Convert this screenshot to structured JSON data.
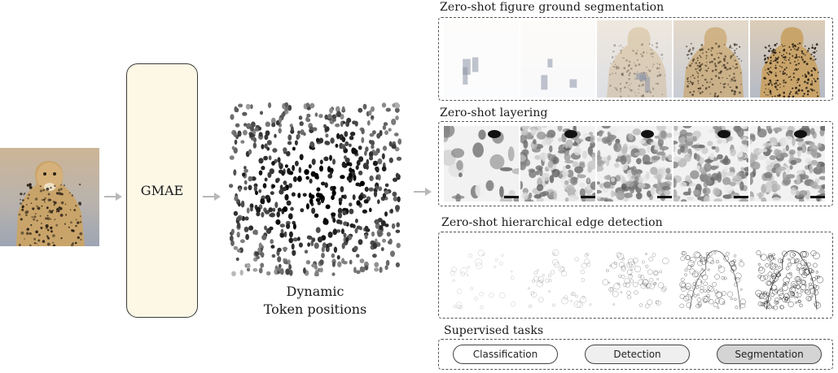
{
  "input": {
    "image_icon": "cheetah-photo"
  },
  "encoder": {
    "label": "GMAE"
  },
  "tokens": {
    "caption_line1": "Dynamic",
    "caption_line2": "Token positions"
  },
  "sections": {
    "segmentation": {
      "title": "Zero-shot figure ground segmentation"
    },
    "layering": {
      "title": "Zero-shot layering"
    },
    "edges": {
      "title": "Zero-shot hierarchical edge detection"
    },
    "supervised": {
      "title": "Supervised tasks",
      "tasks": [
        {
          "label": "Classification",
          "fill": "#ffffff"
        },
        {
          "label": "Detection",
          "fill": "#efefef"
        },
        {
          "label": "Segmentation",
          "fill": "#d4d4d4"
        }
      ]
    }
  },
  "colors": {
    "arrow": "#b8b8b8",
    "gmae_fill": "#fdf7e6",
    "border": "#3a3a3a"
  }
}
